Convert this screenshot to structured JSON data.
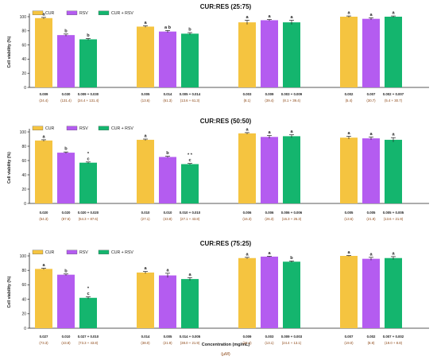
{
  "figure": {
    "x_axis_label": "Concentration (mg/mL)",
    "x_axis_sublabel": "(µM)"
  },
  "colors": {
    "CUR": "#F5C440",
    "RSV": "#B45CF0",
    "CUR + RSV": "#14B56E",
    "mass_text": "#222222",
    "uM_text": "#8B4513"
  },
  "chart_data": [
    {
      "type": "bar",
      "title": "CUR:RES (25:75)",
      "ylabel": "Cell viability (%)",
      "ylim": [
        0,
        100
      ],
      "yticks": [
        0,
        20,
        40,
        60,
        80,
        100
      ],
      "grid": false,
      "legend": {
        "position": "top-left",
        "entries": [
          "CUR",
          "RSV",
          "CUR + RSV"
        ]
      },
      "groups": [
        {
          "bars": [
            {
              "series": "CUR",
              "value": 98,
              "error": 1,
              "letter": "a",
              "star": "",
              "mass": "0.009",
              "um": "(24.4)"
            },
            {
              "series": "RSV",
              "value": 74,
              "error": 1.5,
              "letter": "b",
              "star": "",
              "mass": "0.030",
              "um": "(131.4)"
            },
            {
              "series": "CUR + RSV",
              "value": 68,
              "error": 1.2,
              "letter": "b",
              "star": "",
              "mass": "0.009 + 0.030",
              "um": "(24.4 + 131.4)"
            }
          ]
        },
        {
          "bars": [
            {
              "series": "CUR",
              "value": 86,
              "error": 1,
              "letter": "a",
              "star": "",
              "mass": "0.005",
              "um": "(13.6)"
            },
            {
              "series": "RSV",
              "value": 79,
              "error": 1.5,
              "letter": "a b",
              "star": "",
              "mass": "0.014",
              "um": "(61.3)"
            },
            {
              "series": "CUR + RSV",
              "value": 76,
              "error": 1.5,
              "letter": "b",
              "star": "",
              "mass": "0.005 + 0.014",
              "um": "(13.6 + 61.3)"
            }
          ]
        },
        {
          "bars": [
            {
              "series": "CUR",
              "value": 92,
              "error": 3,
              "letter": "a",
              "star": "",
              "mass": "0.003",
              "um": "(8.1)"
            },
            {
              "series": "RSV",
              "value": 95,
              "error": 1,
              "letter": "a",
              "star": "",
              "mass": "0.009",
              "um": "(39.4)"
            },
            {
              "series": "CUR + RSV",
              "value": 92,
              "error": 3,
              "letter": "a",
              "star": "",
              "mass": "0.003 + 0.009",
              "um": "(8.1 + 39.4)"
            }
          ]
        },
        {
          "bars": [
            {
              "series": "CUR",
              "value": 100,
              "error": 1,
              "letter": "a",
              "star": "",
              "mass": "0.002",
              "um": "(5.4)"
            },
            {
              "series": "RSV",
              "value": 97,
              "error": 1.5,
              "letter": "a",
              "star": "",
              "mass": "0.007",
              "um": "(30.7)"
            },
            {
              "series": "CUR + RSV",
              "value": 100,
              "error": 1,
              "letter": "a",
              "star": "",
              "mass": "0.002 + 0.007",
              "um": "(5.4 + 30.7)"
            }
          ]
        }
      ]
    },
    {
      "type": "bar",
      "title": "CUR:RES (50:50)",
      "ylabel": "Cell viability (%)",
      "ylim": [
        0,
        100
      ],
      "yticks": [
        0,
        20,
        40,
        60,
        80,
        100
      ],
      "grid": false,
      "legend": {
        "position": "top-left",
        "entries": [
          "CUR",
          "RSV",
          "CUR + RSV"
        ]
      },
      "groups": [
        {
          "bars": [
            {
              "series": "CUR",
              "value": 88,
              "error": 1,
              "letter": "a",
              "star": "",
              "mass": "0.020",
              "um": "(54.3)"
            },
            {
              "series": "RSV",
              "value": 71,
              "error": 1,
              "letter": "b",
              "star": "",
              "mass": "0.020",
              "um": "(87.6)"
            },
            {
              "series": "CUR + RSV",
              "value": 57,
              "error": 1,
              "letter": "c",
              "star": "*",
              "mass": "0.020 + 0.020",
              "um": "(54.3 + 87.6)"
            }
          ]
        },
        {
          "bars": [
            {
              "series": "CUR",
              "value": 89,
              "error": 1,
              "letter": "a",
              "star": "",
              "mass": "0.010",
              "um": "(27.1)"
            },
            {
              "series": "RSV",
              "value": 65,
              "error": 1,
              "letter": "b",
              "star": "",
              "mass": "0.010",
              "um": "(43.8)"
            },
            {
              "series": "CUR + RSV",
              "value": 55,
              "error": 1,
              "letter": "c",
              "star": "* *",
              "mass": "0.010 + 0.010",
              "um": "(27.1 + 43.8)"
            }
          ]
        },
        {
          "bars": [
            {
              "series": "CUR",
              "value": 98,
              "error": 1,
              "letter": "a",
              "star": "",
              "mass": "0.006",
              "um": "(16.3)"
            },
            {
              "series": "RSV",
              "value": 93,
              "error": 2,
              "letter": "a",
              "star": "",
              "mass": "0.006",
              "um": "(26.3)"
            },
            {
              "series": "CUR + RSV",
              "value": 94,
              "error": 2,
              "letter": "a",
              "star": "",
              "mass": "0.006 + 0.006",
              "um": "(16.3 + 26.3)"
            }
          ]
        },
        {
          "bars": [
            {
              "series": "CUR",
              "value": 92,
              "error": 2,
              "letter": "a",
              "star": "",
              "mass": "0.005",
              "um": "(13.6)"
            },
            {
              "series": "RSV",
              "value": 91,
              "error": 2,
              "letter": "a",
              "star": "",
              "mass": "0.005",
              "um": "(21.9)"
            },
            {
              "series": "CUR + RSV",
              "value": 89,
              "error": 3,
              "letter": "a",
              "star": "",
              "mass": "0.005 + 0.005",
              "um": "(13.6 + 21.9)"
            }
          ]
        }
      ]
    },
    {
      "type": "bar",
      "title": "CUR:RES (75:25)",
      "ylabel": "Cell viability (%)",
      "ylim": [
        0,
        100
      ],
      "yticks": [
        0,
        20,
        40,
        60,
        80,
        100
      ],
      "grid": false,
      "legend": {
        "position": "top-left",
        "entries": [
          "CUR",
          "RSV",
          "CUR + RSV"
        ]
      },
      "groups": [
        {
          "bars": [
            {
              "series": "CUR",
              "value": 82,
              "error": 1,
              "letter": "a",
              "star": "",
              "mass": "0.027",
              "um": "(73.3)"
            },
            {
              "series": "RSV",
              "value": 74,
              "error": 1,
              "letter": "b",
              "star": "",
              "mass": "0.010",
              "um": "(43.8)"
            },
            {
              "series": "CUR + RSV",
              "value": 42,
              "error": 1.5,
              "letter": "c",
              "star": "*",
              "mass": "0.027 + 0.010",
              "um": "(73.3 + 43.8)"
            }
          ]
        },
        {
          "bars": [
            {
              "series": "CUR",
              "value": 77,
              "error": 1.5,
              "letter": "a",
              "star": "",
              "mass": "0.014",
              "um": "(38.0)"
            },
            {
              "series": "RSV",
              "value": 73,
              "error": 3,
              "letter": "a",
              "star": "",
              "mass": "0.005",
              "um": "(21.9)"
            },
            {
              "series": "CUR + RSV",
              "value": 68,
              "error": 2,
              "letter": "a",
              "star": "",
              "mass": "0.014 + 0.005",
              "um": "(38.0 + 21.9)"
            }
          ]
        },
        {
          "bars": [
            {
              "series": "CUR",
              "value": 97,
              "error": 1,
              "letter": "a",
              "star": "",
              "mass": "0.009",
              "um": "(24.4)"
            },
            {
              "series": "RSV",
              "value": 99,
              "error": 0.5,
              "letter": "a",
              "star": "",
              "mass": "0.003",
              "um": "(13.1)"
            },
            {
              "series": "CUR + RSV",
              "value": 92,
              "error": 1,
              "letter": "b",
              "star": "",
              "mass": "0.009 + 0.003",
              "um": "(24.4 + 13.1)"
            }
          ]
        },
        {
          "bars": [
            {
              "series": "CUR",
              "value": 100,
              "error": 0.5,
              "letter": "a",
              "star": "",
              "mass": "0.007",
              "um": "(19.0)"
            },
            {
              "series": "RSV",
              "value": 96,
              "error": 2,
              "letter": "a",
              "star": "",
              "mass": "0.002",
              "um": "(8.8)"
            },
            {
              "series": "CUR + RSV",
              "value": 97,
              "error": 2,
              "letter": "a",
              "star": "",
              "mass": "0.007 + 0.002",
              "um": "(19.0 + 8.8)"
            }
          ]
        }
      ]
    }
  ]
}
